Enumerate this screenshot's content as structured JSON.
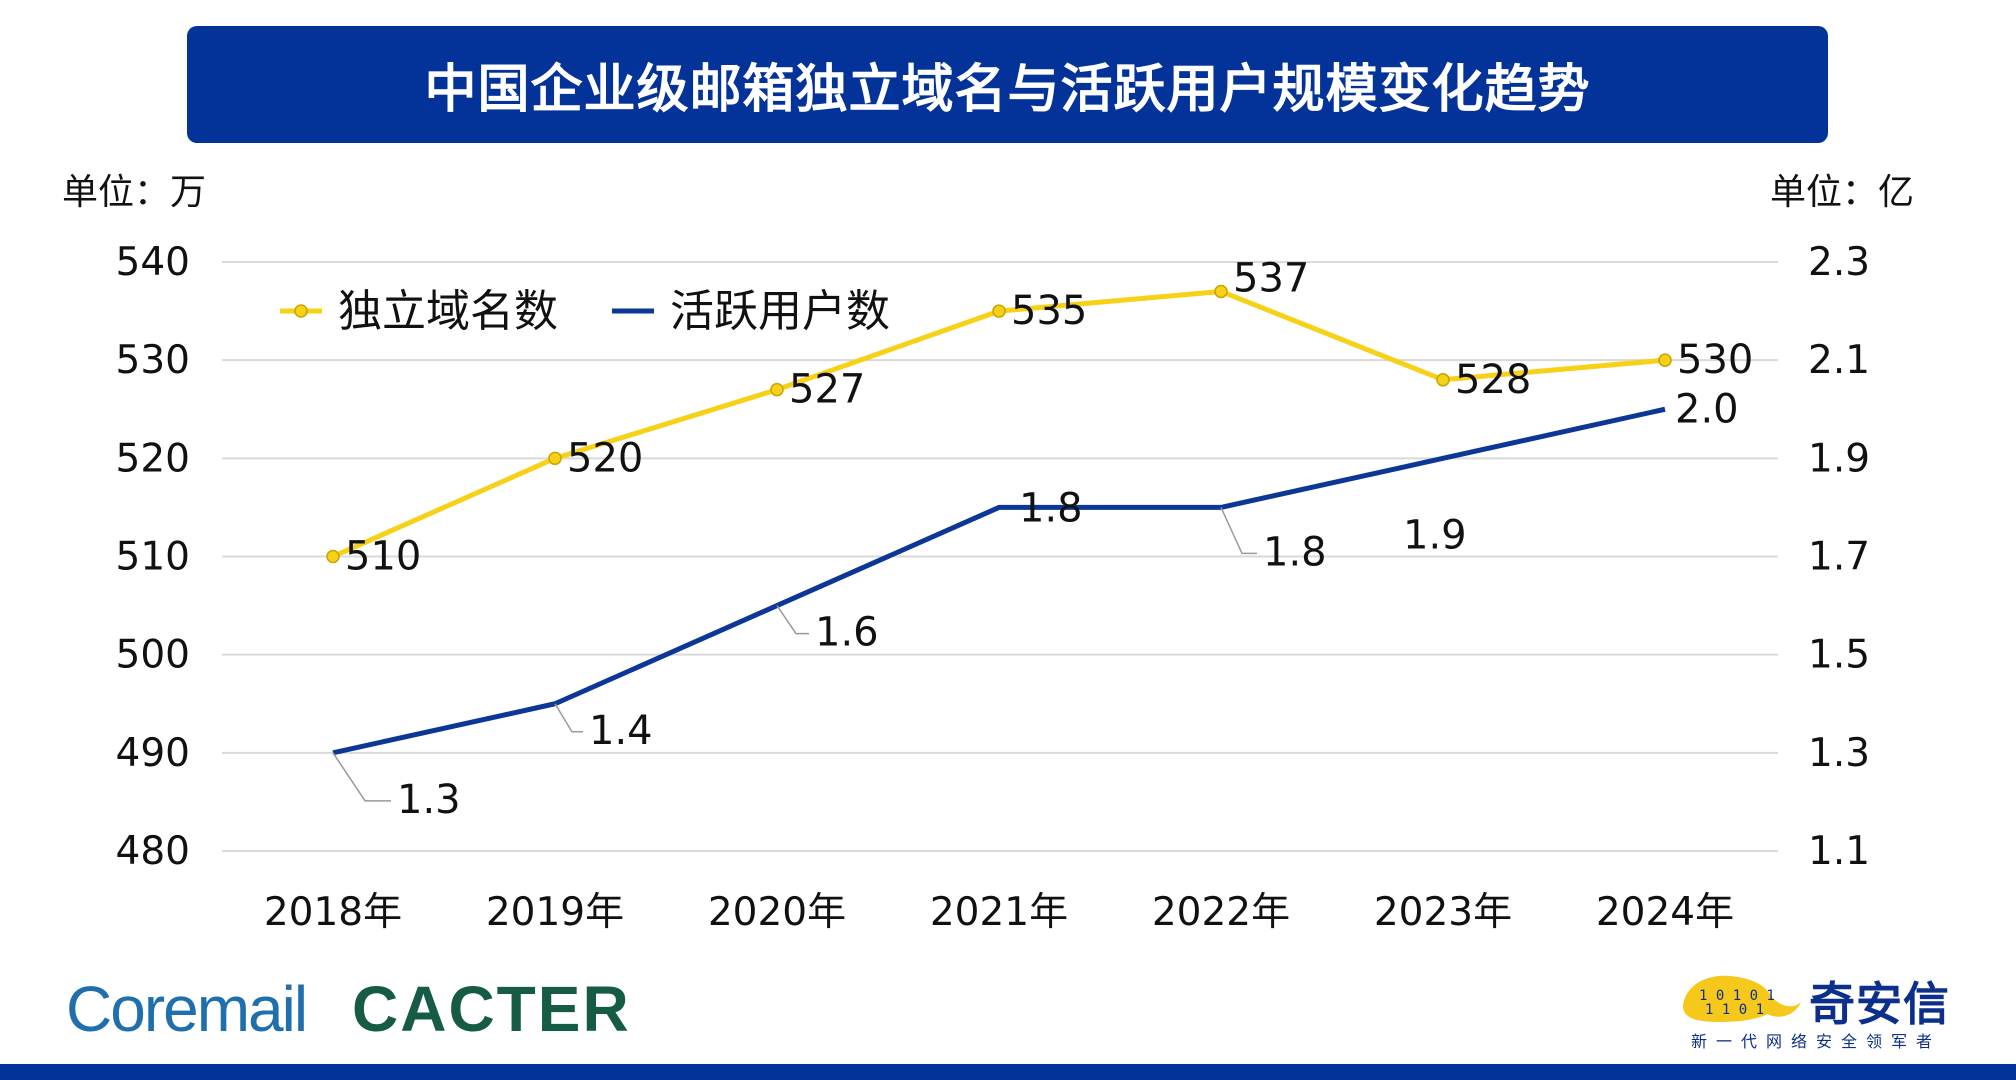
{
  "title": "中国企业级邮箱独立域名与活跃用户规模变化趋势",
  "chart_data": {
    "type": "line",
    "title": "中国企业级邮箱独立域名与活跃用户规模变化趋势",
    "left_unit": "单位：万",
    "right_unit": "单位：亿",
    "categories": [
      "2018年",
      "2019年",
      "2020年",
      "2021年",
      "2022年",
      "2023年",
      "2024年"
    ],
    "y_left": {
      "min": 480,
      "max": 540,
      "ticks": [
        "480",
        "490",
        "500",
        "510",
        "520",
        "530",
        "540"
      ]
    },
    "y_right": {
      "min": 1.1,
      "max": 2.3,
      "ticks": [
        "1.1",
        "1.3",
        "1.5",
        "1.7",
        "1.9",
        "2.1",
        "2.3"
      ]
    },
    "grid": true,
    "legend_position": "top-left",
    "series": [
      {
        "name": "独立域名数",
        "axis": "left",
        "color": "#f7d117",
        "marker": true,
        "values": [
          510,
          520,
          527,
          535,
          537,
          528,
          530
        ],
        "labels": [
          "510",
          "520",
          "527",
          "535",
          "537",
          "528",
          "530"
        ]
      },
      {
        "name": "活跃用户数",
        "axis": "right",
        "color": "#0d3796",
        "marker": false,
        "values": [
          1.3,
          1.4,
          1.6,
          1.8,
          1.8,
          1.9,
          2.0
        ],
        "labels": [
          "1.3",
          "1.4",
          "1.6",
          "1.8",
          "1.8",
          "1.9",
          "2.0"
        ]
      }
    ]
  },
  "logos": {
    "coremail": "Coremail",
    "cacter": "CACTER",
    "qax_name": "奇安信",
    "qax_slogan": "新一代网络安全领军者"
  },
  "colors": {
    "banner": "#033399",
    "coremail": "#1f6fad",
    "cacter": "#155b45",
    "qax": "#0d2f8c",
    "qax_yellow": "#f6c81c"
  }
}
